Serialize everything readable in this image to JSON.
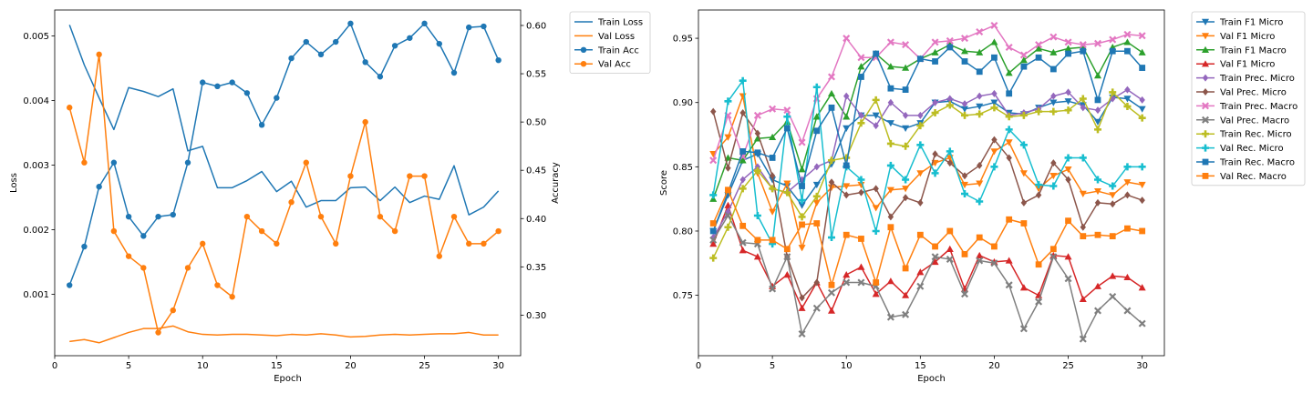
{
  "figure": {},
  "chart_data": [
    {
      "type": "line",
      "title": "",
      "xlabel": "Epoch",
      "ylabel": "Loss",
      "ylabel_right": "Accuracy",
      "xlim": [
        0,
        31.5
      ],
      "ylim": [
        5e-05,
        0.0054
      ],
      "ylim_right": [
        0.258,
        0.616
      ],
      "x_ticks": [
        0,
        5,
        10,
        15,
        20,
        25,
        30
      ],
      "y_ticks": [
        0.001,
        0.002,
        0.003,
        0.004,
        0.005
      ],
      "y_tick_labels": [
        "0.001",
        "0.002",
        "0.003",
        "0.004",
        "0.005"
      ],
      "y_ticks_right": [
        0.3,
        0.35,
        0.4,
        0.45,
        0.5,
        0.55,
        0.6
      ],
      "y_tick_labels_right": [
        "0.30",
        "0.35",
        "0.40",
        "0.45",
        "0.50",
        "0.55",
        "0.60"
      ],
      "legend": "outside-right",
      "grid": false,
      "x": [
        1,
        2,
        3,
        4,
        5,
        6,
        7,
        8,
        9,
        10,
        11,
        12,
        13,
        14,
        15,
        16,
        17,
        18,
        19,
        20,
        21,
        22,
        23,
        24,
        25,
        26,
        27,
        28,
        29,
        30
      ],
      "series": [
        {
          "name": "Train Loss",
          "axis": "left",
          "color": "#1f77b4",
          "marker": "none",
          "values": [
            0.00517,
            0.00455,
            0.00404,
            0.00355,
            0.0042,
            0.00414,
            0.00406,
            0.00418,
            0.00322,
            0.00329,
            0.00265,
            0.00265,
            0.00276,
            0.0029,
            0.00259,
            0.00275,
            0.00235,
            0.00245,
            0.00245,
            0.00265,
            0.00266,
            0.00245,
            0.00266,
            0.00242,
            0.00252,
            0.00247,
            0.00299,
            0.00223,
            0.00235,
            0.0026
          ]
        },
        {
          "name": "Val Loss",
          "axis": "left",
          "color": "#ff7f0e",
          "marker": "none",
          "values": [
            0.00027,
            0.0003,
            0.00025,
            0.00033,
            0.00041,
            0.00047,
            0.00047,
            0.00051,
            0.00042,
            0.00038,
            0.00037,
            0.00038,
            0.00038,
            0.00037,
            0.00036,
            0.00038,
            0.00037,
            0.00039,
            0.00037,
            0.00034,
            0.00035,
            0.00037,
            0.00038,
            0.00037,
            0.00038,
            0.00039,
            0.00039,
            0.00041,
            0.00037,
            0.00037
          ]
        },
        {
          "name": "Train Acc",
          "axis": "right",
          "color": "#1f77b4",
          "marker": "circle",
          "values": [
            0.331,
            0.371,
            0.433,
            0.458,
            0.402,
            0.382,
            0.402,
            0.404,
            0.458,
            0.541,
            0.537,
            0.541,
            0.53,
            0.497,
            0.525,
            0.566,
            0.583,
            0.57,
            0.583,
            0.602,
            0.562,
            0.547,
            0.579,
            0.587,
            0.602,
            0.581,
            0.551,
            0.598,
            0.599,
            0.564
          ]
        },
        {
          "name": "Val Acc",
          "axis": "right",
          "color": "#ff7f0e",
          "marker": "circle",
          "values": [
            0.515,
            0.458,
            0.57,
            0.387,
            0.361,
            0.349,
            0.282,
            0.305,
            0.349,
            0.374,
            0.331,
            0.319,
            0.402,
            0.387,
            0.374,
            0.417,
            0.458,
            0.402,
            0.374,
            0.444,
            0.5,
            0.402,
            0.387,
            0.444,
            0.444,
            0.361,
            0.402,
            0.374,
            0.374,
            0.387
          ]
        }
      ]
    },
    {
      "type": "line",
      "title": "",
      "xlabel": "Epoch",
      "ylabel": "Score",
      "xlim": [
        0,
        31.5
      ],
      "ylim": [
        0.703,
        0.972
      ],
      "x_ticks": [
        0,
        5,
        10,
        15,
        20,
        25,
        30
      ],
      "y_ticks": [
        0.75,
        0.8,
        0.85,
        0.9,
        0.95
      ],
      "y_tick_labels": [
        "0.75",
        "0.80",
        "0.85",
        "0.90",
        "0.95"
      ],
      "legend": "outside-right",
      "grid": false,
      "x": [
        1,
        2,
        3,
        4,
        5,
        6,
        7,
        8,
        9,
        10,
        11,
        12,
        13,
        14,
        15,
        16,
        17,
        18,
        19,
        20,
        21,
        22,
        23,
        24,
        25,
        26,
        27,
        28,
        29,
        30
      ],
      "series": [
        {
          "name": "Train F1 Micro",
          "color": "#1f77b4",
          "marker": "triangle-down",
          "values": [
            0.8,
            0.828,
            0.855,
            0.86,
            0.84,
            0.835,
            0.82,
            0.836,
            0.852,
            0.88,
            0.89,
            0.89,
            0.884,
            0.88,
            0.884,
            0.9,
            0.901,
            0.895,
            0.897,
            0.9,
            0.892,
            0.891,
            0.896,
            0.9,
            0.901,
            0.898,
            0.885,
            0.904,
            0.903,
            0.895
          ]
        },
        {
          "name": "Val F1 Micro",
          "color": "#ff7f0e",
          "marker": "triangle-down",
          "values": [
            0.86,
            0.873,
            0.905,
            0.845,
            0.815,
            0.837,
            0.787,
            0.822,
            0.834,
            0.835,
            0.836,
            0.818,
            0.832,
            0.833,
            0.845,
            0.853,
            0.857,
            0.836,
            0.837,
            0.862,
            0.869,
            0.845,
            0.833,
            0.843,
            0.848,
            0.829,
            0.831,
            0.828,
            0.838,
            0.836
          ]
        },
        {
          "name": "Train F1 Macro",
          "color": "#2ca02c",
          "marker": "triangle-up",
          "values": [
            0.825,
            0.857,
            0.855,
            0.872,
            0.873,
            0.885,
            0.848,
            0.889,
            0.907,
            0.889,
            0.928,
            0.938,
            0.928,
            0.927,
            0.934,
            0.939,
            0.945,
            0.94,
            0.939,
            0.947,
            0.923,
            0.933,
            0.942,
            0.939,
            0.942,
            0.943,
            0.921,
            0.943,
            0.947,
            0.939
          ]
        },
        {
          "name": "Val F1 Micro",
          "color": "#d62728",
          "marker": "triangle-up",
          "values": [
            0.79,
            0.82,
            0.785,
            0.78,
            0.757,
            0.766,
            0.74,
            0.76,
            0.738,
            0.766,
            0.772,
            0.751,
            0.761,
            0.75,
            0.768,
            0.776,
            0.786,
            0.755,
            0.781,
            0.776,
            0.777,
            0.756,
            0.75,
            0.781,
            0.78,
            0.747,
            0.757,
            0.765,
            0.764,
            0.756
          ]
        },
        {
          "name": "Train Prec. Micro",
          "color": "#9467bd",
          "marker": "diamond",
          "values": [
            0.795,
            0.815,
            0.84,
            0.85,
            0.833,
            0.83,
            0.84,
            0.85,
            0.855,
            0.905,
            0.89,
            0.882,
            0.9,
            0.89,
            0.89,
            0.9,
            0.903,
            0.899,
            0.905,
            0.907,
            0.89,
            0.892,
            0.895,
            0.905,
            0.908,
            0.896,
            0.894,
            0.903,
            0.91,
            0.902
          ]
        },
        {
          "name": "Val Prec. Micro",
          "color": "#8c564b",
          "marker": "diamond",
          "values": [
            0.893,
            0.849,
            0.892,
            0.876,
            0.843,
            0.78,
            0.748,
            0.76,
            0.838,
            0.828,
            0.83,
            0.833,
            0.811,
            0.826,
            0.822,
            0.86,
            0.853,
            0.843,
            0.851,
            0.871,
            0.857,
            0.822,
            0.828,
            0.853,
            0.84,
            0.803,
            0.822,
            0.821,
            0.828,
            0.824
          ]
        },
        {
          "name": "Train Prec. Macro",
          "color": "#e377c2",
          "marker": "x",
          "values": [
            0.855,
            0.89,
            0.858,
            0.89,
            0.895,
            0.894,
            0.869,
            0.903,
            0.92,
            0.95,
            0.935,
            0.935,
            0.947,
            0.945,
            0.934,
            0.947,
            0.948,
            0.95,
            0.955,
            0.96,
            0.943,
            0.937,
            0.945,
            0.951,
            0.947,
            0.945,
            0.946,
            0.949,
            0.953,
            0.952
          ]
        },
        {
          "name": "Val Prec. Macro",
          "color": "#7f7f7f",
          "marker": "x",
          "values": [
            0.793,
            0.812,
            0.791,
            0.79,
            0.755,
            0.78,
            0.72,
            0.74,
            0.752,
            0.76,
            0.76,
            0.757,
            0.733,
            0.735,
            0.757,
            0.78,
            0.778,
            0.751,
            0.777,
            0.775,
            0.758,
            0.724,
            0.745,
            0.78,
            0.763,
            0.716,
            0.738,
            0.749,
            0.738,
            0.728
          ]
        },
        {
          "name": "Train Rec. Micro",
          "color": "#bcbd22",
          "marker": "plus",
          "values": [
            0.779,
            0.803,
            0.833,
            0.847,
            0.833,
            0.83,
            0.811,
            0.827,
            0.855,
            0.857,
            0.884,
            0.902,
            0.868,
            0.866,
            0.882,
            0.892,
            0.898,
            0.89,
            0.891,
            0.896,
            0.889,
            0.89,
            0.893,
            0.893,
            0.894,
            0.903,
            0.879,
            0.908,
            0.897,
            0.888
          ]
        },
        {
          "name": "Val Rec. Micro",
          "color": "#17becf",
          "marker": "plus",
          "values": [
            0.828,
            0.901,
            0.917,
            0.812,
            0.79,
            0.889,
            0.824,
            0.912,
            0.795,
            0.85,
            0.84,
            0.8,
            0.851,
            0.84,
            0.867,
            0.845,
            0.862,
            0.829,
            0.823,
            0.85,
            0.879,
            0.867,
            0.836,
            0.835,
            0.857,
            0.857,
            0.84,
            0.835,
            0.85,
            0.85
          ]
        },
        {
          "name": "Train Rec. Macro",
          "color": "#1f77b4",
          "marker": "square",
          "values": [
            0.8,
            0.83,
            0.862,
            0.861,
            0.857,
            0.88,
            0.835,
            0.878,
            0.896,
            0.851,
            0.92,
            0.938,
            0.911,
            0.91,
            0.934,
            0.932,
            0.943,
            0.932,
            0.924,
            0.935,
            0.907,
            0.928,
            0.935,
            0.926,
            0.938,
            0.94,
            0.902,
            0.94,
            0.94,
            0.927
          ]
        },
        {
          "name": "Val Rec. Macro",
          "color": "#ff7f0e",
          "marker": "square",
          "values": [
            0.806,
            0.832,
            0.804,
            0.793,
            0.793,
            0.786,
            0.805,
            0.806,
            0.758,
            0.797,
            0.794,
            0.76,
            0.803,
            0.771,
            0.797,
            0.788,
            0.8,
            0.782,
            0.795,
            0.788,
            0.809,
            0.806,
            0.774,
            0.786,
            0.808,
            0.796,
            0.797,
            0.796,
            0.802,
            0.8
          ]
        }
      ]
    }
  ]
}
